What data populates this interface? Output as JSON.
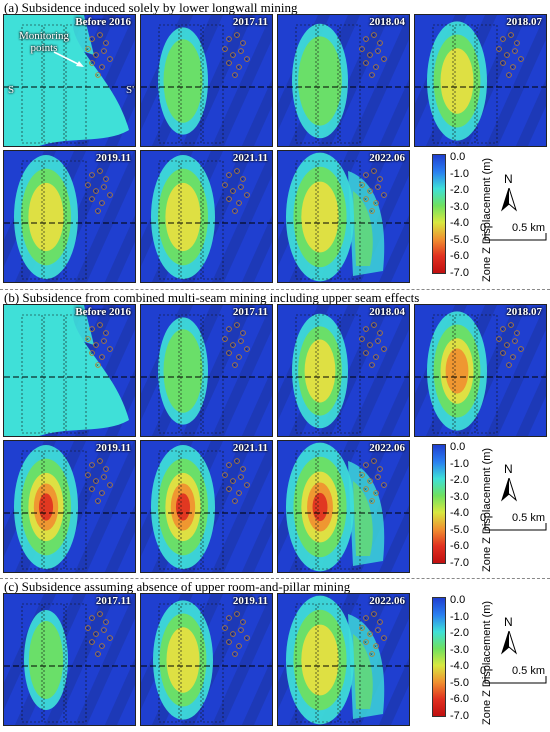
{
  "sections": [
    {
      "title": "(a) Subsidence induced solely by lower longwall mining",
      "panels": [
        "Before 2016",
        "2017.11",
        "2018.04",
        "2018.07",
        "2019.11",
        "2021.11",
        "2022.06"
      ]
    },
    {
      "title": "(b) Subsidence from combined multi-seam mining including upper seam effects",
      "panels": [
        "Before 2016",
        "2017.11",
        "2018.04",
        "2018.07",
        "2019.11",
        "2021.11",
        "2022.06"
      ]
    },
    {
      "title": "(c) Subsidence assuming absence of upper room-and-pillar mining",
      "panels": [
        "2017.11",
        "2019.11",
        "2022.06"
      ]
    }
  ],
  "annotations": {
    "monitoring": "Monitoring\npoints",
    "s_left": "S",
    "s_right": "S'"
  },
  "legend": {
    "title": "Zone Z Displacement (m)",
    "ticks": [
      "0.0",
      "-1.0",
      "-2.0",
      "-3.0",
      "-4.0",
      "-5.0",
      "-6.0",
      "-7.0"
    ],
    "north": "N",
    "scale_start": "0",
    "scale_end": "0.5 km"
  },
  "colors": {
    "base": "#1f3fd0",
    "cyan": "#3fe0d8",
    "green": "#6fe060",
    "yellow": "#e8e040",
    "orange": "#f09030",
    "red": "#e03020",
    "terrain_dark": "#1a2f8a"
  }
}
